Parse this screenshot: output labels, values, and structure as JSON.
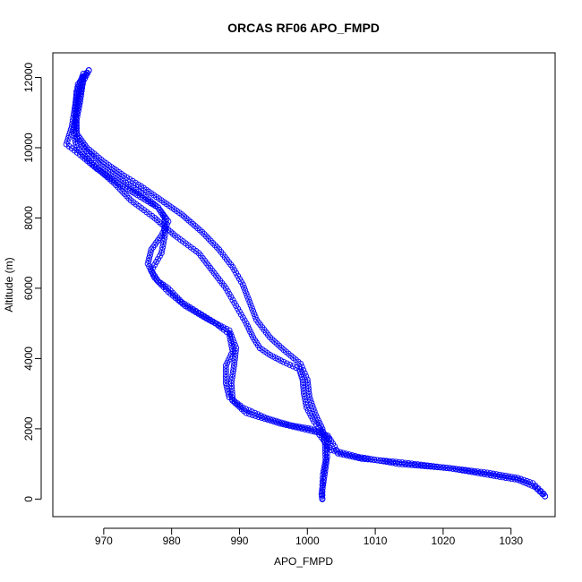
{
  "chart_data": {
    "type": "scatter",
    "title": "ORCAS RF06 APO_FMPD",
    "xlabel": "APO_FMPD",
    "ylabel": "Altitude (m)",
    "xlim": [
      962.5,
      1036.5
    ],
    "ylim": [
      -500,
      12700
    ],
    "x_ticks": [
      970,
      980,
      990,
      1000,
      1010,
      1020,
      1030
    ],
    "y_ticks": [
      0,
      2000,
      4000,
      6000,
      8000,
      10000,
      12000
    ],
    "marker": "open-circle",
    "color": "#0000ff",
    "series": [
      {
        "points": [
          [
            1002.2,
            0
          ],
          [
            1002.1,
            150
          ],
          [
            1002.3,
            400
          ],
          [
            1002.6,
            800
          ],
          [
            1002.9,
            1200
          ],
          [
            1002.9,
            1500
          ],
          [
            1003.2,
            1700
          ],
          [
            1002.3,
            1900
          ],
          [
            1001.0,
            2200
          ],
          [
            999.9,
            2600
          ],
          [
            999.5,
            3000
          ],
          [
            999.3,
            3400
          ],
          [
            998.8,
            3700
          ],
          [
            996.5,
            3900
          ],
          [
            994.5,
            4100
          ],
          [
            993.0,
            4300
          ],
          [
            992.0,
            4600
          ],
          [
            991.0,
            5000
          ],
          [
            989.5,
            5500
          ],
          [
            988.0,
            6000
          ],
          [
            986.0,
            6500
          ],
          [
            984.0,
            7000
          ],
          [
            980.5,
            7500
          ],
          [
            977.5,
            8000
          ],
          [
            974.0,
            8500
          ],
          [
            971.5,
            9000
          ],
          [
            968.5,
            9500
          ],
          [
            966.0,
            10000
          ],
          [
            965.5,
            10500
          ],
          [
            966.0,
            11000
          ],
          [
            966.5,
            11500
          ],
          [
            967.0,
            11900
          ],
          [
            967.8,
            12200
          ]
        ]
      },
      {
        "points": [
          [
            967.8,
            12200
          ],
          [
            966.2,
            11800
          ],
          [
            965.8,
            11200
          ],
          [
            965.3,
            10600
          ],
          [
            964.5,
            10100
          ],
          [
            966.5,
            9800
          ],
          [
            969.0,
            9400
          ],
          [
            972.0,
            9000
          ],
          [
            975.0,
            8650
          ],
          [
            978.0,
            8300
          ],
          [
            979.0,
            8000
          ],
          [
            979.0,
            7500
          ],
          [
            978.5,
            7000
          ],
          [
            977.0,
            6500
          ],
          [
            978.0,
            6200
          ],
          [
            979.5,
            6000
          ],
          [
            981.5,
            5600
          ],
          [
            984.0,
            5300
          ],
          [
            986.5,
            5000
          ],
          [
            988.5,
            4700
          ],
          [
            989.0,
            4200
          ],
          [
            988.0,
            3800
          ],
          [
            988.0,
            3300
          ],
          [
            988.5,
            2900
          ],
          [
            990.5,
            2600
          ],
          [
            994.0,
            2300
          ],
          [
            997.5,
            2100
          ],
          [
            1000.5,
            2000
          ],
          [
            1003.0,
            1800
          ],
          [
            1004.0,
            1500
          ],
          [
            1004.5,
            1300
          ],
          [
            1008.0,
            1150
          ],
          [
            1013.5,
            1050
          ],
          [
            1020.0,
            900
          ],
          [
            1026.5,
            750
          ],
          [
            1031.0,
            600
          ],
          [
            1033.2,
            450
          ],
          [
            1034.0,
            300
          ],
          [
            1034.8,
            150
          ],
          [
            1035.0,
            80
          ]
        ]
      },
      {
        "points": [
          [
            1035.0,
            80
          ],
          [
            1033.5,
            350
          ],
          [
            1031.0,
            550
          ],
          [
            1027.0,
            680
          ],
          [
            1021.0,
            880
          ],
          [
            1013.5,
            1000
          ],
          [
            1007.5,
            1200
          ],
          [
            1003.5,
            1400
          ],
          [
            1001.5,
            1900
          ],
          [
            996.0,
            2150
          ],
          [
            991.0,
            2450
          ],
          [
            989.0,
            2800
          ],
          [
            988.8,
            3300
          ],
          [
            989.2,
            3800
          ],
          [
            989.5,
            4300
          ],
          [
            988.5,
            4800
          ],
          [
            985.5,
            5100
          ],
          [
            982.0,
            5500
          ],
          [
            979.5,
            5900
          ],
          [
            977.5,
            6300
          ],
          [
            976.5,
            6700
          ],
          [
            977.0,
            7100
          ],
          [
            978.5,
            7500
          ],
          [
            979.5,
            7900
          ],
          [
            978.0,
            8300
          ],
          [
            975.5,
            8700
          ],
          [
            972.5,
            9100
          ],
          [
            969.5,
            9500
          ],
          [
            967.5,
            9900
          ],
          [
            966.0,
            10300
          ],
          [
            966.0,
            10800
          ],
          [
            966.5,
            11300
          ],
          [
            966.8,
            11700
          ],
          [
            967.0,
            12100
          ]
        ]
      },
      {
        "points": [
          [
            967.0,
            12100
          ],
          [
            966.0,
            11600
          ],
          [
            965.8,
            11000
          ],
          [
            966.0,
            10400
          ],
          [
            967.5,
            10000
          ],
          [
            970.0,
            9600
          ],
          [
            973.0,
            9200
          ],
          [
            975.5,
            8900
          ],
          [
            978.5,
            8500
          ],
          [
            981.5,
            8100
          ],
          [
            984.5,
            7600
          ],
          [
            987.0,
            7100
          ],
          [
            989.0,
            6600
          ],
          [
            990.5,
            6100
          ],
          [
            991.5,
            5600
          ],
          [
            992.5,
            5100
          ],
          [
            994.5,
            4600
          ],
          [
            996.5,
            4250
          ],
          [
            999.0,
            3850
          ],
          [
            1000.0,
            3400
          ],
          [
            1000.3,
            2900
          ],
          [
            1001.2,
            2400
          ],
          [
            1002.2,
            2000
          ],
          [
            1002.6,
            1600
          ],
          [
            1002.7,
            1100
          ],
          [
            1002.3,
            700
          ],
          [
            1002.2,
            300
          ],
          [
            1002.2,
            20
          ]
        ]
      }
    ]
  }
}
